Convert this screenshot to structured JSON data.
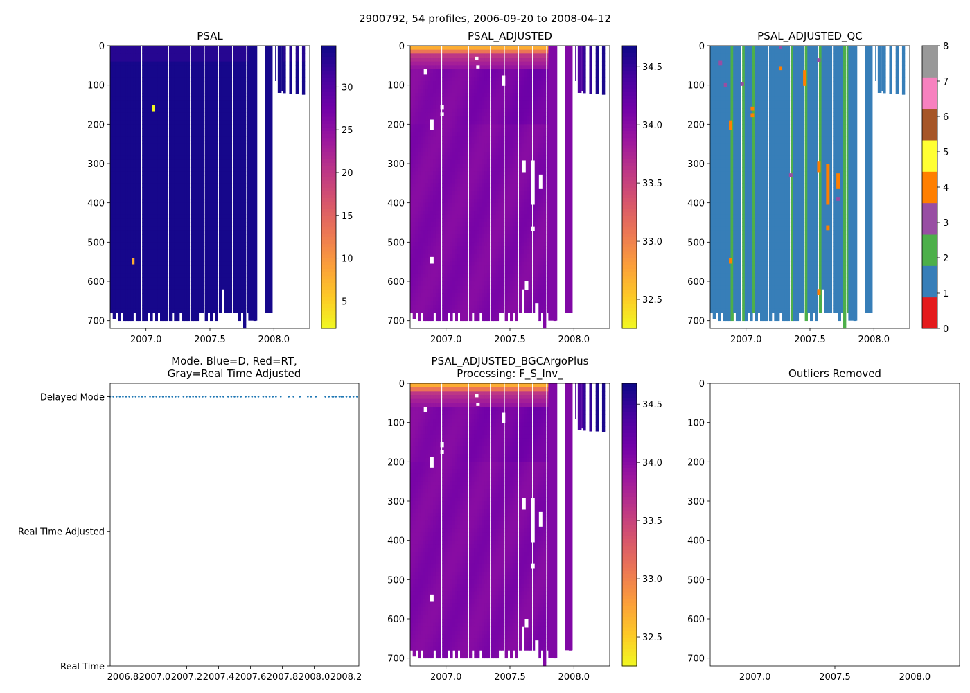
{
  "figure": {
    "title": "2900792, 54 profiles, 2006-09-20 to 2008-04-12"
  },
  "colors": {
    "plasma_stops": [
      "#0d0887",
      "#46039f",
      "#7201a8",
      "#9c179e",
      "#bd3786",
      "#d8576b",
      "#ed7953",
      "#fb9f3a",
      "#fdca26",
      "#f0f921"
    ],
    "qc": [
      "#e41a1c",
      "#377eb8",
      "#4daf4a",
      "#984ea3",
      "#ff7f00",
      "#ffff33",
      "#a65628",
      "#f781bf",
      "#999999"
    ],
    "mode_dot": "#1f77b4"
  },
  "chart_data": [
    {
      "type": "heatmap",
      "id": "psal",
      "title": "PSAL",
      "colormap": "plasma_r",
      "x_range": [
        2006.72,
        2008.28
      ],
      "y_range": [
        720,
        0
      ],
      "x_ticks": [
        2007.0,
        2007.5,
        2008.0
      ],
      "x_tick_labels": [
        "2007.0",
        "2007.5",
        "2008.0"
      ],
      "y_ticks": [
        0,
        100,
        200,
        300,
        400,
        500,
        600,
        700
      ],
      "y_tick_labels": [
        "0",
        "100",
        "200",
        "300",
        "400",
        "500",
        "600",
        "700"
      ],
      "colorbar": {
        "range": [
          1.8,
          34.8
        ],
        "ticks": [
          5,
          10,
          15,
          20,
          25,
          30
        ],
        "tick_labels": [
          "5",
          "10",
          "15",
          "20",
          "25",
          "30"
        ]
      },
      "base_value": 34.2,
      "surface_value": 33.2,
      "anomalies": [
        {
          "time": 2007.06,
          "depth": 158,
          "value": 2.0
        },
        {
          "time": 2006.9,
          "depth": 548,
          "value": 8.0
        }
      ]
    },
    {
      "type": "heatmap",
      "id": "psal_adjusted",
      "title": "PSAL_ADJUSTED",
      "colormap": "plasma_r",
      "x_range": [
        2006.72,
        2008.28
      ],
      "y_range": [
        720,
        0
      ],
      "x_ticks": [
        2007.0,
        2007.5,
        2008.0
      ],
      "x_tick_labels": [
        "2007.0",
        "2007.5",
        "2008.0"
      ],
      "y_ticks": [
        0,
        100,
        200,
        300,
        400,
        500,
        600,
        700
      ],
      "y_tick_labels": [
        "0",
        "100",
        "200",
        "300",
        "400",
        "500",
        "600",
        "700"
      ],
      "colorbar": {
        "range": [
          32.25,
          34.68
        ],
        "ticks": [
          32.5,
          33.0,
          33.5,
          34.0,
          34.5
        ],
        "tick_labels": [
          "32.5",
          "33.0",
          "33.5",
          "34.0",
          "34.5"
        ]
      },
      "deep_value": 34.05,
      "surface_value": 32.7
    },
    {
      "type": "heatmap",
      "id": "psal_adjusted_qc",
      "title": "PSAL_ADJUSTED_QC",
      "colormap": "qc",
      "x_range": [
        2006.72,
        2008.28
      ],
      "y_range": [
        720,
        0
      ],
      "x_ticks": [
        2007.0,
        2007.5,
        2008.0
      ],
      "x_tick_labels": [
        "2007.0",
        "2007.5",
        "2008.0"
      ],
      "y_ticks": [
        0,
        100,
        200,
        300,
        400,
        500,
        600,
        700
      ],
      "y_tick_labels": [
        "0",
        "100",
        "200",
        "300",
        "400",
        "500",
        "600",
        "700"
      ],
      "colorbar": {
        "range": [
          0,
          8
        ],
        "ticks": [
          0,
          1,
          2,
          3,
          4,
          5,
          6,
          7,
          8
        ],
        "tick_labels": [
          "0",
          "1",
          "2",
          "3",
          "4",
          "5",
          "6",
          "7",
          "8"
        ]
      },
      "base_flag": 1,
      "flag2_times": [
        2006.88,
        2006.97,
        2007.05,
        2007.35,
        2007.46,
        2007.57,
        2007.76,
        2007.79
      ],
      "flagged_cells": [
        {
          "time": 2006.88,
          "depth_range": [
            190,
            215
          ],
          "flag": 4
        },
        {
          "time": 2006.88,
          "depth_range": [
            540,
            555
          ],
          "flag": 4
        },
        {
          "time": 2007.05,
          "depth_range": [
            155,
            165
          ],
          "flag": 4
        },
        {
          "time": 2007.05,
          "depth_range": [
            172,
            182
          ],
          "flag": 4
        },
        {
          "time": 2007.27,
          "depth_range": [
            52,
            62
          ],
          "flag": 4
        },
        {
          "time": 2007.46,
          "depth_range": [
            62,
            102
          ],
          "flag": 4
        },
        {
          "time": 2007.57,
          "depth_range": [
            295,
            322
          ],
          "flag": 4
        },
        {
          "time": 2007.64,
          "depth_range": [
            300,
            405
          ],
          "flag": 4
        },
        {
          "time": 2007.64,
          "depth_range": [
            458,
            470
          ],
          "flag": 4
        },
        {
          "time": 2007.57,
          "depth_range": [
            620,
            635
          ],
          "flag": 4
        },
        {
          "time": 2007.72,
          "depth_range": [
            325,
            365
          ],
          "flag": 4
        },
        {
          "time": 2006.8,
          "depth_range": [
            38,
            50
          ],
          "flag": 3
        },
        {
          "time": 2006.84,
          "depth_range": [
            95,
            105
          ],
          "flag": 3
        },
        {
          "time": 2006.97,
          "depth_range": [
            92,
            102
          ],
          "flag": 3
        },
        {
          "time": 2007.35,
          "depth_range": [
            325,
            335
          ],
          "flag": 3
        },
        {
          "time": 2007.27,
          "depth_range": [
            0,
            8
          ],
          "flag": 3
        },
        {
          "time": 2007.57,
          "depth_range": [
            32,
            42
          ],
          "flag": 3
        },
        {
          "time": 2007.72,
          "depth_range": [
            385,
            395
          ],
          "flag": 3
        }
      ]
    },
    {
      "type": "scatter",
      "id": "mode",
      "title_line1": "Mode. Blue=D, Red=RT,",
      "title_line2": "Gray=Real Time Adjusted",
      "x_range": [
        2006.72,
        2008.28
      ],
      "y_range": [
        0,
        2.1
      ],
      "x_ticks": [
        2006.8,
        2007.0,
        2007.2,
        2007.4,
        2007.6,
        2007.8,
        2008.0,
        2008.2
      ],
      "x_tick_labels": [
        "2006.8",
        "2007.0",
        "2007.2",
        "2007.4",
        "2007.6",
        "2007.8",
        "2008.0",
        "2008.2"
      ],
      "y_ticks": [
        2,
        1,
        0
      ],
      "y_tick_labels": [
        "Delayed Mode",
        "Real Time Adjusted",
        "Real Time"
      ],
      "mode_value": 2
    },
    {
      "type": "heatmap",
      "id": "psal_adjusted_bgc",
      "title_line1": "PSAL_ADJUSTED_BGCArgoPlus",
      "title_line2": "Processing: F_S_Inv_",
      "colormap": "plasma_r",
      "x_range": [
        2006.72,
        2008.28
      ],
      "y_range": [
        720,
        0
      ],
      "x_ticks": [
        2007.0,
        2007.5,
        2008.0
      ],
      "x_tick_labels": [
        "2007.0",
        "2007.5",
        "2008.0"
      ],
      "y_ticks": [
        0,
        100,
        200,
        300,
        400,
        500,
        600,
        700
      ],
      "y_tick_labels": [
        "0",
        "100",
        "200",
        "300",
        "400",
        "500",
        "600",
        "700"
      ],
      "colorbar": {
        "range": [
          32.25,
          34.68
        ],
        "ticks": [
          32.5,
          33.0,
          33.5,
          34.0,
          34.5
        ],
        "tick_labels": [
          "32.5",
          "33.0",
          "33.5",
          "34.0",
          "34.5"
        ]
      },
      "deep_value": 34.05,
      "surface_value": 32.7
    },
    {
      "type": "heatmap",
      "id": "outliers",
      "title": "Outliers Removed",
      "x_range": [
        2006.72,
        2008.28
      ],
      "y_range": [
        720,
        0
      ],
      "x_ticks": [
        2007.0,
        2007.5,
        2008.0
      ],
      "x_tick_labels": [
        "2007.0",
        "2007.5",
        "2008.0"
      ],
      "y_ticks": [
        0,
        100,
        200,
        300,
        400,
        500,
        600,
        700
      ],
      "y_tick_labels": [
        "0",
        "100",
        "200",
        "300",
        "400",
        "500",
        "600",
        "700"
      ]
    }
  ],
  "profiles": [
    {
      "time": 2006.72,
      "max_depth": 680
    },
    {
      "time": 2006.74,
      "max_depth": 695
    },
    {
      "time": 2006.76,
      "max_depth": 680
    },
    {
      "time": 2006.78,
      "max_depth": 700
    },
    {
      "time": 2006.8,
      "max_depth": 680
    },
    {
      "time": 2006.82,
      "max_depth": 700
    },
    {
      "time": 2006.84,
      "max_depth": 700
    },
    {
      "time": 2006.86,
      "max_depth": 700
    },
    {
      "time": 2006.88,
      "max_depth": 700
    },
    {
      "time": 2006.9,
      "max_depth": 680
    },
    {
      "time": 2006.92,
      "max_depth": 700
    },
    {
      "time": 2006.94,
      "max_depth": 700
    },
    {
      "time": 2006.97,
      "max_depth": 700
    },
    {
      "time": 2006.99,
      "max_depth": 700
    },
    {
      "time": 2007.01,
      "max_depth": 680
    },
    {
      "time": 2007.03,
      "max_depth": 700
    },
    {
      "time": 2007.05,
      "max_depth": 680
    },
    {
      "time": 2007.07,
      "max_depth": 700
    },
    {
      "time": 2007.09,
      "max_depth": 680
    },
    {
      "time": 2007.11,
      "max_depth": 700
    },
    {
      "time": 2007.13,
      "max_depth": 700
    },
    {
      "time": 2007.15,
      "max_depth": 700
    },
    {
      "time": 2007.18,
      "max_depth": 700
    },
    {
      "time": 2007.2,
      "max_depth": 680
    },
    {
      "time": 2007.22,
      "max_depth": 700
    },
    {
      "time": 2007.24,
      "max_depth": 700
    },
    {
      "time": 2007.26,
      "max_depth": 680
    },
    {
      "time": 2007.28,
      "max_depth": 700
    },
    {
      "time": 2007.3,
      "max_depth": 700
    },
    {
      "time": 2007.32,
      "max_depth": 700
    },
    {
      "time": 2007.35,
      "max_depth": 700
    },
    {
      "time": 2007.37,
      "max_depth": 700
    },
    {
      "time": 2007.39,
      "max_depth": 700
    },
    {
      "time": 2007.41,
      "max_depth": 680
    },
    {
      "time": 2007.43,
      "max_depth": 680
    },
    {
      "time": 2007.46,
      "max_depth": 700
    },
    {
      "time": 2007.48,
      "max_depth": 680
    },
    {
      "time": 2007.5,
      "max_depth": 700
    },
    {
      "time": 2007.52,
      "max_depth": 680
    },
    {
      "time": 2007.54,
      "max_depth": 700
    },
    {
      "time": 2007.57,
      "max_depth": 680
    },
    {
      "time": 2007.59,
      "max_depth": 620
    },
    {
      "time": 2007.61,
      "max_depth": 680
    },
    {
      "time": 2007.63,
      "max_depth": 680
    },
    {
      "time": 2007.65,
      "max_depth": 680
    },
    {
      "time": 2007.68,
      "max_depth": 680
    },
    {
      "time": 2007.7,
      "max_depth": 680
    },
    {
      "time": 2007.72,
      "max_depth": 700
    },
    {
      "time": 2007.74,
      "max_depth": 680
    },
    {
      "time": 2007.76,
      "max_depth": 720
    },
    {
      "time": 2007.79,
      "max_depth": 680
    },
    {
      "time": 2007.84,
      "max_depth": 700
    },
    {
      "time": 2007.96,
      "max_depth": 680
    },
    {
      "time": 2008.07,
      "max_depth": 120
    },
    {
      "time": 2008.12,
      "max_depth": 122
    },
    {
      "time": 2008.17,
      "max_depth": 122
    },
    {
      "time": 2008.22,
      "max_depth": 124
    }
  ],
  "wide_columns": [
    {
      "t0": 2007.8,
      "t1": 2007.87,
      "max_depth": 700
    },
    {
      "t0": 2007.93,
      "t1": 2007.99,
      "max_depth": 680
    }
  ],
  "gap_segments": [
    {
      "t0": 2008.01,
      "t1": 2008.02,
      "max_depth": 90
    },
    {
      "t0": 2008.03,
      "t1": 2008.06,
      "max_depth": 120
    },
    {
      "t0": 2008.06,
      "t1": 2008.07,
      "max_depth": 115
    }
  ],
  "holes": [
    {
      "time": 2006.89,
      "depth_range": [
        188,
        215
      ]
    },
    {
      "time": 2006.89,
      "depth_range": [
        538,
        555
      ]
    },
    {
      "time": 2006.97,
      "depth_range": [
        150,
        163
      ]
    },
    {
      "time": 2006.97,
      "depth_range": [
        170,
        180
      ]
    },
    {
      "time": 2006.84,
      "depth_range": [
        60,
        73
      ]
    },
    {
      "time": 2007.25,
      "depth_range": [
        50,
        58
      ]
    },
    {
      "time": 2007.24,
      "depth_range": [
        28,
        36
      ]
    },
    {
      "time": 2007.45,
      "depth_range": [
        75,
        102
      ]
    },
    {
      "time": 2007.61,
      "depth_range": [
        292,
        322
      ]
    },
    {
      "time": 2007.63,
      "depth_range": [
        600,
        622
      ]
    },
    {
      "time": 2007.68,
      "depth_range": [
        292,
        405
      ]
    },
    {
      "time": 2007.68,
      "depth_range": [
        460,
        472
      ]
    },
    {
      "time": 2007.74,
      "depth_range": [
        328,
        365
      ]
    },
    {
      "time": 2007.71,
      "depth_range": [
        655,
        700
      ]
    }
  ]
}
